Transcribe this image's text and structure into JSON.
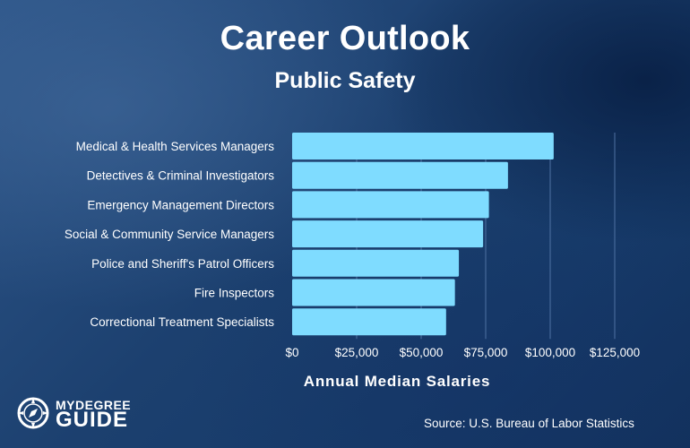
{
  "header": {
    "title": "Career Outlook",
    "subtitle": "Public Safety"
  },
  "chart_data": {
    "type": "bar",
    "orientation": "horizontal",
    "title": "Career Outlook",
    "subtitle": "Public Safety",
    "xlabel": "Annual Median Salaries",
    "ylabel": "",
    "categories": [
      "Medical & Health Services Managers",
      "Detectives & Criminal Investigators",
      "Emergency Management Directors",
      "Social & Community Service Managers",
      "Police and Sheriff's Patrol Officers",
      "Fire Inspectors",
      "Correctional Treatment Specialists"
    ],
    "values": [
      101340,
      83640,
      76250,
      74000,
      64610,
      63080,
      59660
    ],
    "xlim": [
      0,
      125000
    ],
    "xticks": [
      0,
      25000,
      50000,
      75000,
      100000,
      125000
    ],
    "xtick_labels": [
      "$0",
      "$25,000",
      "$50,000",
      "$75,000",
      "$100,000",
      "$125,000"
    ],
    "grid": true,
    "legend": "none",
    "bar_color": "#7fdcff",
    "grid_color": "#4f72a3"
  },
  "footer": {
    "source": "Source: U.S. Bureau of Labor Statistics",
    "logo_line1": "MYDEGREE",
    "logo_line2": "GUIDE"
  }
}
